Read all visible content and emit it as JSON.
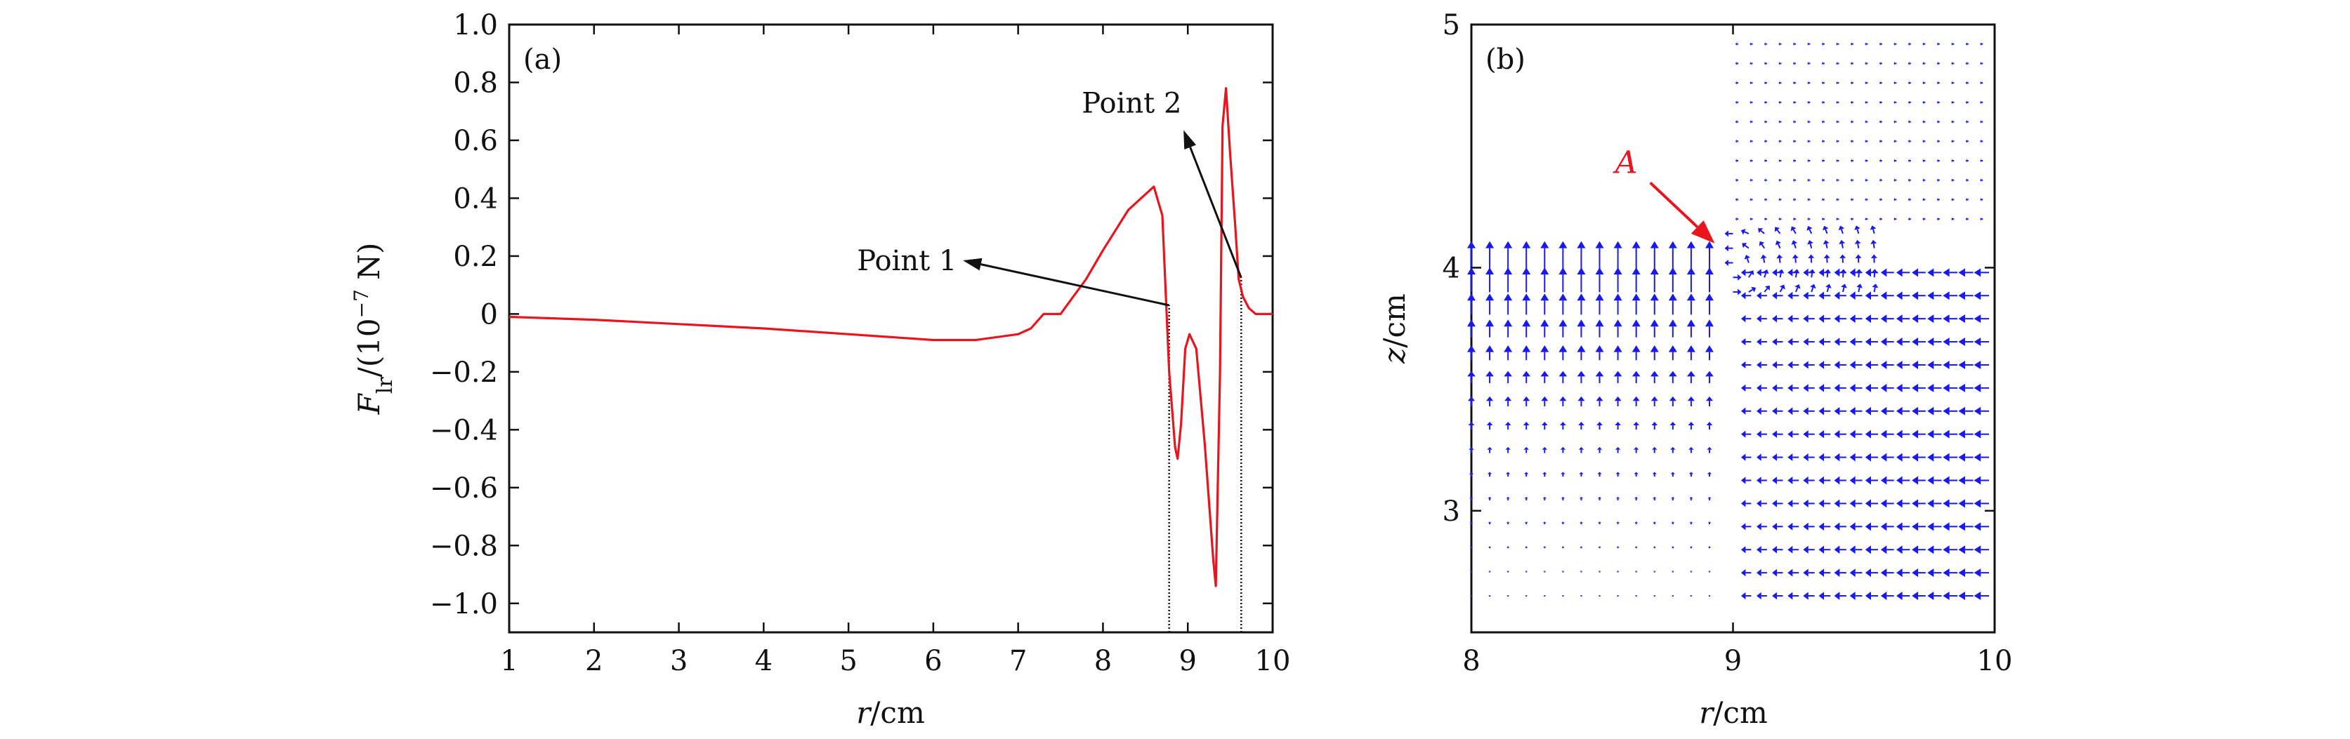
{
  "chart_data": [
    {
      "type": "line",
      "panel_label": "(a)",
      "xlabel_var": "r",
      "xlabel_unit": "/cm",
      "ylabel_var": "F",
      "ylabel_sub": "lr",
      "ylabel_rest": "/(10",
      "ylabel_sup": "−7",
      "ylabel_unit": " N)",
      "xlim": [
        1,
        10
      ],
      "ylim": [
        -1.1,
        1.0
      ],
      "xticks": [
        1,
        2,
        3,
        4,
        5,
        6,
        7,
        8,
        9,
        10
      ],
      "xtick_labels": [
        "1",
        "2",
        "3",
        "4",
        "5",
        "6",
        "7",
        "8",
        "9",
        "10"
      ],
      "yticks": [
        1.0,
        0.8,
        0.6,
        0.4,
        0.2,
        0,
        -0.2,
        -0.4,
        -0.6,
        -0.8,
        -1.0
      ],
      "ytick_labels": [
        "1.0",
        "0.8",
        "0.6",
        "0.4",
        "0.2",
        "0",
        "−0.2",
        "−0.4",
        "−0.6",
        "−0.8",
        "−1.0"
      ],
      "line_color": "#e8141e",
      "series": [
        {
          "x": [
            1.0,
            2.0,
            3.0,
            4.0,
            5.0,
            6.0,
            6.5,
            7.0,
            7.15,
            7.3,
            7.5,
            7.6,
            7.8,
            8.0,
            8.3,
            8.6,
            8.7,
            8.78,
            8.85,
            8.88,
            8.92,
            8.97,
            9.02,
            9.1,
            9.2,
            9.3,
            9.33,
            9.38,
            9.41,
            9.45,
            9.5,
            9.56,
            9.6,
            9.65,
            9.72,
            9.8,
            9.9,
            10.0
          ],
          "y": [
            -0.01,
            -0.02,
            -0.035,
            -0.05,
            -0.07,
            -0.09,
            -0.09,
            -0.07,
            -0.05,
            0.0,
            0.0,
            0.04,
            0.12,
            0.22,
            0.36,
            0.44,
            0.34,
            -0.2,
            -0.46,
            -0.5,
            -0.38,
            -0.12,
            -0.07,
            -0.12,
            -0.45,
            -0.85,
            -0.94,
            -0.2,
            0.65,
            0.78,
            0.55,
            0.3,
            0.12,
            0.06,
            0.02,
            0.0,
            0.0,
            0.0
          ]
        }
      ],
      "annotations": [
        {
          "label": "Point 1",
          "at_r": 8.78,
          "at_F": 0.03,
          "arrow_to_r": 6.35,
          "arrow_to_F": 0.185,
          "text_r": 5.1,
          "text_F": 0.185
        },
        {
          "label": "Point 2",
          "at_r": 9.63,
          "at_F": 0.125,
          "arrow_to_r": 8.95,
          "arrow_to_F": 0.635,
          "text_r": 7.75,
          "text_F": 0.73
        }
      ],
      "vertical_markers_r": [
        8.78,
        9.63
      ]
    },
    {
      "type": "quiver",
      "panel_label": "(b)",
      "xlabel_var": "r",
      "xlabel_unit": "/cm",
      "ylabel_var": "z",
      "ylabel_unit": "/cm",
      "xlim": [
        8,
        10
      ],
      "ylim": [
        2.5,
        5.0
      ],
      "xticks": [
        8,
        9,
        10
      ],
      "xtick_labels": [
        "8",
        "9",
        "10"
      ],
      "yticks": [
        3,
        4,
        5
      ],
      "ytick_labels": [
        "3",
        "4",
        "5"
      ],
      "vector_color": "#1919ee",
      "annotation": {
        "label": "A",
        "color": "#e8141e",
        "at_r": 8.93,
        "at_z": 4.1,
        "text_r": 8.63,
        "text_z": 4.39
      }
    }
  ]
}
